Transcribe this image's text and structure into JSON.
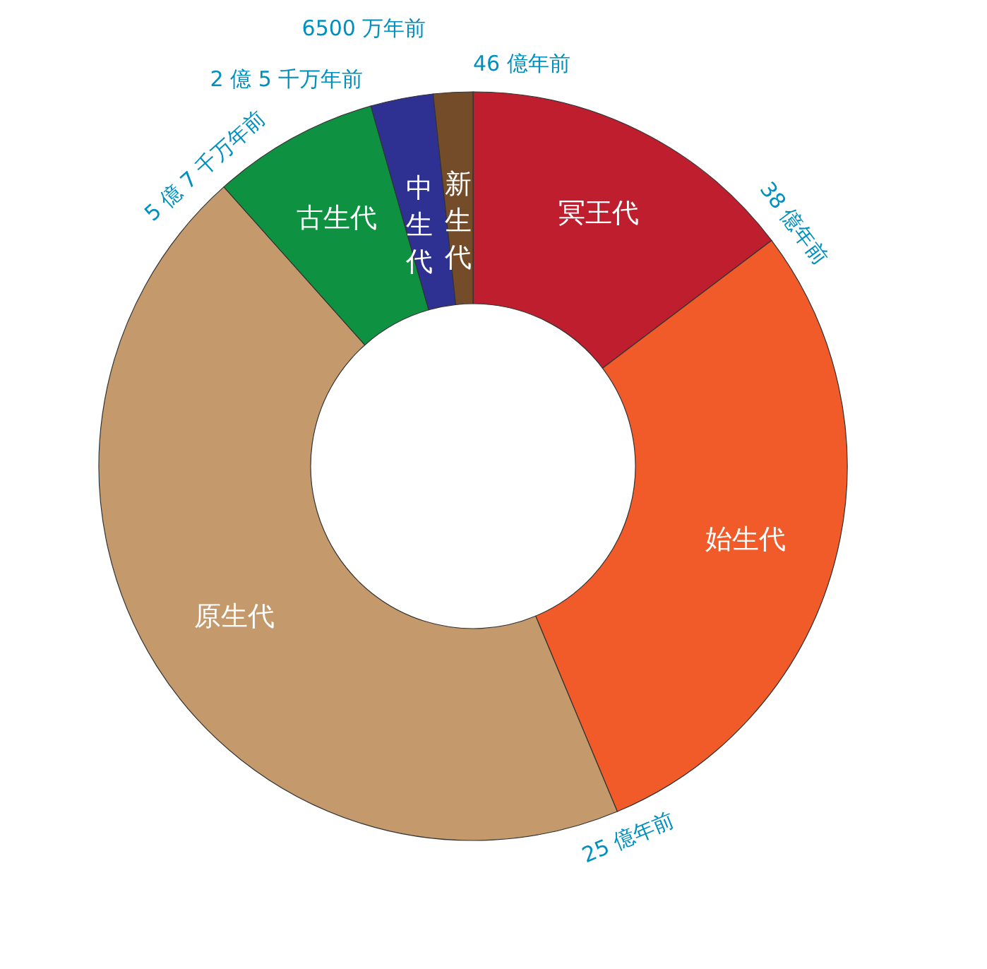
{
  "chart_data": {
    "type": "donut",
    "categories": [
      "冥王代",
      "始生代",
      "原生代",
      "古生代",
      "中生代",
      "新生代"
    ],
    "values": [
      14.7,
      29.0,
      44.7,
      7.2,
      2.7,
      1.7
    ],
    "colors": [
      "#be1e2d",
      "#f15a29",
      "#c49a6c",
      "#0f9142",
      "#2e3192",
      "#754c29"
    ],
    "annotations": [
      "46 億年前",
      "38 億年前",
      "25 億年前",
      "5 億 7 千万年前",
      "2 億 5 千万年前",
      "6500 万年前"
    ],
    "legend": false
  }
}
